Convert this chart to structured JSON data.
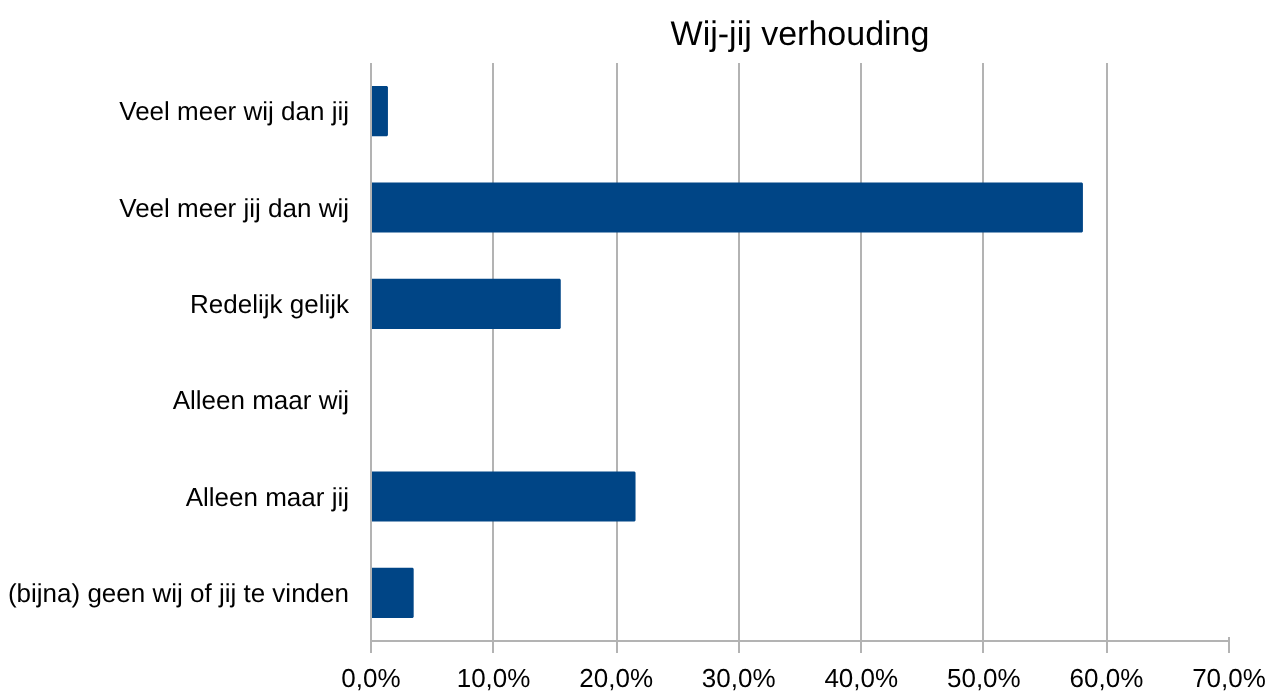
{
  "chart_data": {
    "type": "bar",
    "orientation": "horizontal",
    "title": "Wij-jij verhouding",
    "categories": [
      "Veel meer wij dan jij",
      "Veel meer jij dan wij",
      "Redelijk gelijk",
      "Alleen maar wij",
      "Alleen maar jij",
      "(bijna) geen wij of jij te vinden"
    ],
    "values": [
      1.3,
      58.0,
      15.4,
      0,
      21.5,
      3.4
    ],
    "color": "#004586",
    "xlim": [
      0,
      70
    ],
    "xticks": [
      {
        "value": 0,
        "label": "0,0%"
      },
      {
        "value": 10,
        "label": "10,0%"
      },
      {
        "value": 20,
        "label": "20,0%"
      },
      {
        "value": 30,
        "label": "30,0%"
      },
      {
        "value": 40,
        "label": "40,0%"
      },
      {
        "value": 50,
        "label": "50,0%"
      },
      {
        "value": 60,
        "label": "60,0%"
      },
      {
        "value": 70,
        "label": "70,0%"
      }
    ],
    "grid": "x"
  }
}
